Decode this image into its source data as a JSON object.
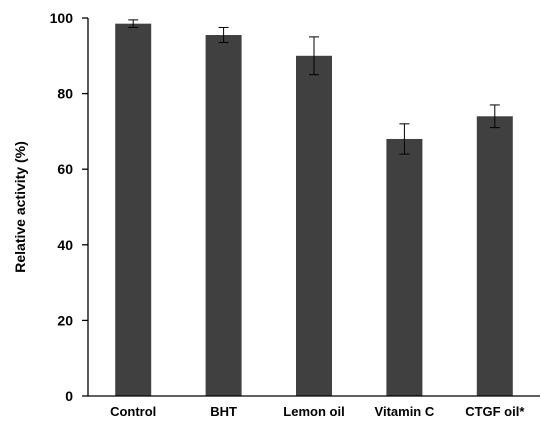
{
  "chart_data": {
    "type": "bar",
    "title": "",
    "xlabel": "",
    "ylabel": "Relative activity (%)",
    "categories": [
      "Control",
      "BHT",
      "Lemon oil",
      "Vitamin C",
      "CTGF oil*"
    ],
    "values": [
      98.5,
      95.5,
      90,
      68,
      74
    ],
    "errors": [
      1,
      2,
      5,
      4,
      3
    ],
    "ylim": [
      0,
      100
    ],
    "yticks": [
      0,
      20,
      40,
      60,
      80,
      100
    ],
    "grid": false,
    "legend": "none",
    "bar_color": "#404040",
    "axis_color": "#000000",
    "errorbar_color": "#000000"
  }
}
